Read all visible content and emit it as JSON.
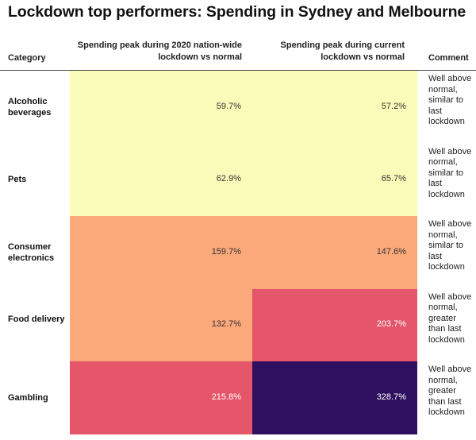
{
  "title": "Lockdown top performers: Spending in Sydney and Melbourne",
  "headers": {
    "category": "Category",
    "col1": "Spending peak during 2020 nation-wide lockdown vs normal",
    "col2": "Spending peak during current lockdown vs normal",
    "comment": "Comment"
  },
  "chart_data": {
    "type": "table",
    "title": "Lockdown top performers: Spending in Sydney and Melbourne",
    "columns": [
      "Category",
      "Spending peak during 2020 nation-wide lockdown vs normal",
      "Spending peak during current lockdown vs normal",
      "Comment"
    ],
    "rows": [
      {
        "category": "Alcoholic beverages",
        "v2020": "59.7%",
        "vcur": "57.2%",
        "comment": "Well above normal, similar to last lockdown",
        "c2020": "#fbfbb9",
        "ccur": "#fbfbb9",
        "t2020": "#333333",
        "tcur": "#333333"
      },
      {
        "category": "Pets",
        "v2020": "62.9%",
        "vcur": "65.7%",
        "comment": "Well above normal, similar to last lockdown",
        "c2020": "#fbfbb9",
        "ccur": "#fbfbb9",
        "t2020": "#333333",
        "tcur": "#333333"
      },
      {
        "category": "Consumer electronics",
        "v2020": "159.7%",
        "vcur": "147.6%",
        "comment": "Well above normal, similar to last lockdown",
        "c2020": "#fba87a",
        "ccur": "#fba87a",
        "t2020": "#333333",
        "tcur": "#333333"
      },
      {
        "category": "Food delivery",
        "v2020": "132.7%",
        "vcur": "203.7%",
        "comment": "Well above normal, greater than last lockdown",
        "c2020": "#fba87a",
        "ccur": "#e5566a",
        "t2020": "#333333",
        "tcur": "#ffffff"
      },
      {
        "category": "Gambling",
        "v2020": "215.8%",
        "vcur": "328.7%",
        "comment": "Well above normal, greater than last lockdown",
        "c2020": "#e5566a",
        "ccur": "#2f1060",
        "t2020": "#ffffff",
        "tcur": "#ffffff"
      }
    ]
  }
}
